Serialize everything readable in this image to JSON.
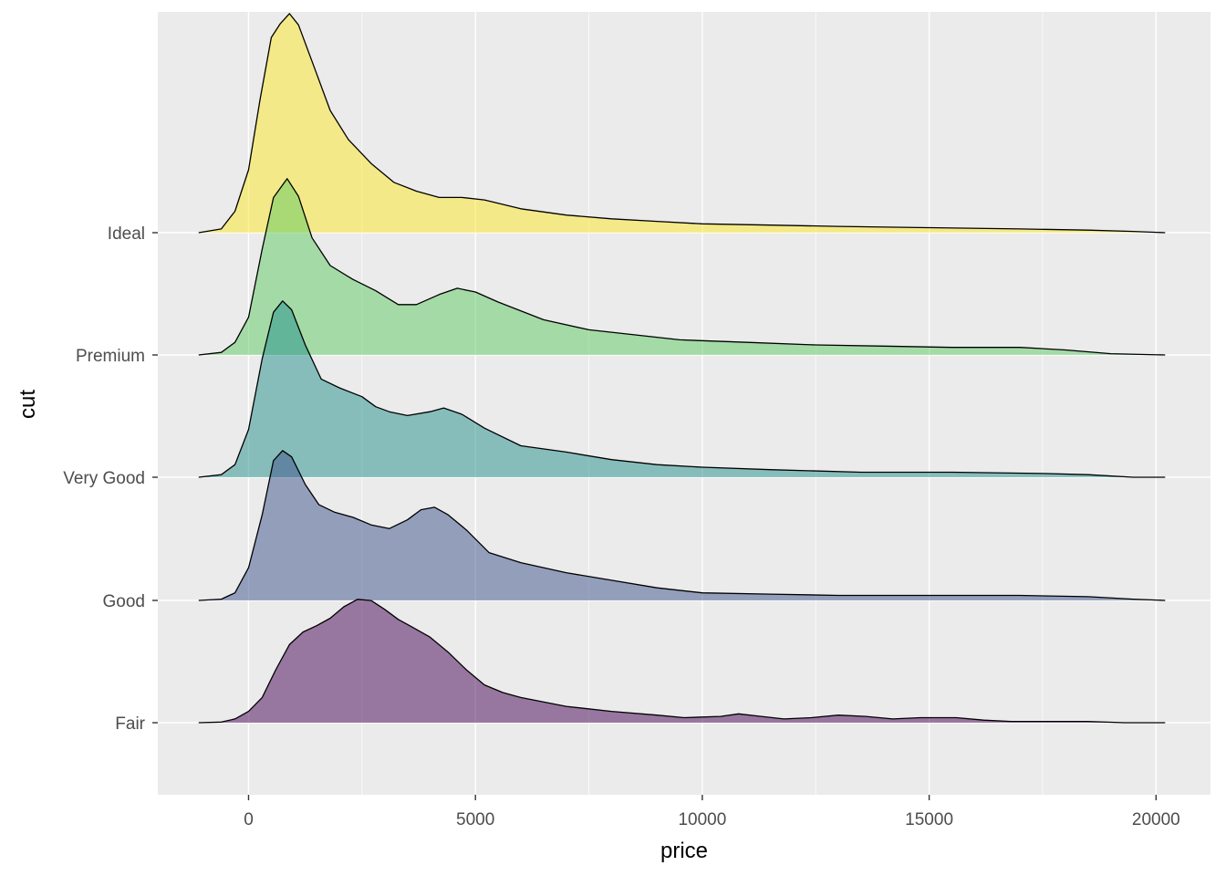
{
  "chart_data": {
    "type": "area",
    "subtype": "ridgeline",
    "xlabel": "price",
    "ylabel": "cut",
    "xlim": [
      -2000,
      21200
    ],
    "x_ticks": [
      0,
      5000,
      10000,
      15000,
      20000
    ],
    "x_tick_labels": [
      "0",
      "5000",
      "10000",
      "15000",
      "20000"
    ],
    "grid": true,
    "legend": "none",
    "background": "#ebebeb",
    "series": [
      {
        "category": "Fair",
        "color": "#440154",
        "points": [
          [
            -1100,
            0
          ],
          [
            -600,
            0.005
          ],
          [
            -300,
            0.03
          ],
          [
            0,
            0.09
          ],
          [
            300,
            0.2
          ],
          [
            600,
            0.42
          ],
          [
            900,
            0.62
          ],
          [
            1200,
            0.72
          ],
          [
            1500,
            0.77
          ],
          [
            1800,
            0.83
          ],
          [
            2100,
            0.92
          ],
          [
            2400,
            0.98
          ],
          [
            2700,
            0.97
          ],
          [
            3000,
            0.9
          ],
          [
            3300,
            0.82
          ],
          [
            3600,
            0.76
          ],
          [
            4000,
            0.68
          ],
          [
            4400,
            0.56
          ],
          [
            4800,
            0.42
          ],
          [
            5200,
            0.3
          ],
          [
            5600,
            0.24
          ],
          [
            6000,
            0.2
          ],
          [
            7000,
            0.13
          ],
          [
            8000,
            0.09
          ],
          [
            9000,
            0.06
          ],
          [
            9600,
            0.04
          ],
          [
            10400,
            0.05
          ],
          [
            10800,
            0.07
          ],
          [
            11300,
            0.05
          ],
          [
            11800,
            0.03
          ],
          [
            12400,
            0.04
          ],
          [
            13000,
            0.06
          ],
          [
            13600,
            0.05
          ],
          [
            14200,
            0.03
          ],
          [
            14800,
            0.04
          ],
          [
            15600,
            0.04
          ],
          [
            16200,
            0.02
          ],
          [
            16800,
            0.01
          ],
          [
            17600,
            0.01
          ],
          [
            18500,
            0.01
          ],
          [
            19300,
            0
          ],
          [
            20200,
            0
          ]
        ]
      },
      {
        "category": "Good",
        "color": "#3b528b",
        "points": [
          [
            -1100,
            0
          ],
          [
            -600,
            0.01
          ],
          [
            -300,
            0.06
          ],
          [
            0,
            0.26
          ],
          [
            300,
            0.68
          ],
          [
            550,
            1.11
          ],
          [
            750,
            1.19
          ],
          [
            950,
            1.14
          ],
          [
            1250,
            0.92
          ],
          [
            1550,
            0.76
          ],
          [
            1900,
            0.7
          ],
          [
            2300,
            0.66
          ],
          [
            2700,
            0.6
          ],
          [
            3100,
            0.57
          ],
          [
            3500,
            0.64
          ],
          [
            3800,
            0.72
          ],
          [
            4100,
            0.74
          ],
          [
            4400,
            0.68
          ],
          [
            4800,
            0.56
          ],
          [
            5300,
            0.38
          ],
          [
            6000,
            0.3
          ],
          [
            7000,
            0.22
          ],
          [
            8000,
            0.16
          ],
          [
            9000,
            0.1
          ],
          [
            10000,
            0.06
          ],
          [
            11500,
            0.05
          ],
          [
            13000,
            0.04
          ],
          [
            15000,
            0.04
          ],
          [
            17000,
            0.04
          ],
          [
            18500,
            0.03
          ],
          [
            19500,
            0.01
          ],
          [
            20200,
            0
          ]
        ]
      },
      {
        "category": "Very Good",
        "color": "#21908c",
        "points": [
          [
            -1100,
            0
          ],
          [
            -600,
            0.02
          ],
          [
            -300,
            0.1
          ],
          [
            0,
            0.38
          ],
          [
            300,
            0.94
          ],
          [
            550,
            1.31
          ],
          [
            750,
            1.4
          ],
          [
            950,
            1.33
          ],
          [
            1250,
            1.05
          ],
          [
            1600,
            0.78
          ],
          [
            2000,
            0.71
          ],
          [
            2500,
            0.64
          ],
          [
            2800,
            0.56
          ],
          [
            3100,
            0.52
          ],
          [
            3500,
            0.49
          ],
          [
            4000,
            0.52
          ],
          [
            4300,
            0.55
          ],
          [
            4700,
            0.5
          ],
          [
            5200,
            0.39
          ],
          [
            6000,
            0.25
          ],
          [
            7000,
            0.2
          ],
          [
            8000,
            0.14
          ],
          [
            9000,
            0.1
          ],
          [
            10000,
            0.08
          ],
          [
            11500,
            0.06
          ],
          [
            13500,
            0.04
          ],
          [
            15500,
            0.04
          ],
          [
            17500,
            0.03
          ],
          [
            18500,
            0.02
          ],
          [
            19500,
            0
          ],
          [
            20200,
            0
          ]
        ]
      },
      {
        "category": "Premium",
        "color": "#5ec962",
        "points": [
          [
            -1100,
            0
          ],
          [
            -600,
            0.02
          ],
          [
            -300,
            0.1
          ],
          [
            0,
            0.3
          ],
          [
            300,
            0.84
          ],
          [
            550,
            1.25
          ],
          [
            850,
            1.4
          ],
          [
            1100,
            1.26
          ],
          [
            1400,
            0.93
          ],
          [
            1800,
            0.71
          ],
          [
            2300,
            0.6
          ],
          [
            2800,
            0.51
          ],
          [
            3300,
            0.4
          ],
          [
            3700,
            0.4
          ],
          [
            4200,
            0.48
          ],
          [
            4600,
            0.53
          ],
          [
            5000,
            0.5
          ],
          [
            5500,
            0.42
          ],
          [
            6500,
            0.28
          ],
          [
            7500,
            0.2
          ],
          [
            8500,
            0.16
          ],
          [
            9500,
            0.12
          ],
          [
            11000,
            0.1
          ],
          [
            12500,
            0.08
          ],
          [
            14000,
            0.07
          ],
          [
            15500,
            0.06
          ],
          [
            17000,
            0.06
          ],
          [
            18000,
            0.04
          ],
          [
            19000,
            0.01
          ],
          [
            20200,
            0
          ]
        ]
      },
      {
        "category": "Ideal",
        "color": "#fde725",
        "points": [
          [
            -1100,
            0
          ],
          [
            -600,
            0.03
          ],
          [
            -300,
            0.17
          ],
          [
            0,
            0.5
          ],
          [
            250,
            1.05
          ],
          [
            500,
            1.55
          ],
          [
            700,
            1.66
          ],
          [
            900,
            1.74
          ],
          [
            1100,
            1.65
          ],
          [
            1400,
            1.36
          ],
          [
            1800,
            0.97
          ],
          [
            2200,
            0.74
          ],
          [
            2700,
            0.55
          ],
          [
            3200,
            0.4
          ],
          [
            3700,
            0.33
          ],
          [
            4200,
            0.28
          ],
          [
            4700,
            0.28
          ],
          [
            5200,
            0.26
          ],
          [
            6000,
            0.19
          ],
          [
            7000,
            0.14
          ],
          [
            8000,
            0.11
          ],
          [
            9000,
            0.09
          ],
          [
            10000,
            0.07
          ],
          [
            11500,
            0.06
          ],
          [
            13000,
            0.05
          ],
          [
            15000,
            0.04
          ],
          [
            17000,
            0.03
          ],
          [
            18500,
            0.02
          ],
          [
            19500,
            0.01
          ],
          [
            20200,
            0
          ]
        ]
      }
    ]
  }
}
